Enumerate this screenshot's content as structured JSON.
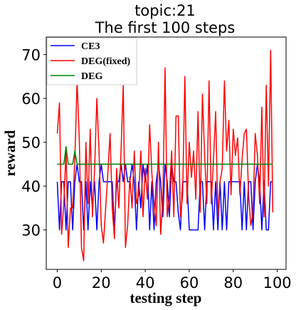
{
  "chart_data": {
    "type": "line",
    "title": "topic:21",
    "subtitle": "The first 100 steps",
    "xlabel": "testing step",
    "ylabel": "reward",
    "xlim": [
      -5,
      104
    ],
    "ylim": [
      21,
      74
    ],
    "xticks": [
      0,
      20,
      40,
      60,
      80,
      100
    ],
    "yticks": [
      30,
      40,
      50,
      60,
      70
    ],
    "grid": false,
    "legend": "top-left",
    "x": [
      0,
      1,
      2,
      3,
      4,
      5,
      6,
      7,
      8,
      9,
      10,
      11,
      12,
      13,
      14,
      15,
      16,
      17,
      18,
      19,
      20,
      21,
      22,
      23,
      24,
      25,
      26,
      27,
      28,
      29,
      30,
      31,
      32,
      33,
      34,
      35,
      36,
      37,
      38,
      39,
      40,
      41,
      42,
      43,
      44,
      45,
      46,
      47,
      48,
      49,
      50,
      51,
      52,
      53,
      54,
      55,
      56,
      57,
      58,
      59,
      60,
      61,
      62,
      63,
      64,
      65,
      66,
      67,
      68,
      69,
      70,
      71,
      72,
      73,
      74,
      75,
      76,
      77,
      78,
      79,
      80,
      81,
      82,
      83,
      84,
      85,
      86,
      87,
      88,
      89,
      90,
      91,
      92,
      93,
      94,
      95,
      96,
      97,
      98
    ],
    "series": [
      {
        "name": "CE3",
        "color": "#0000ff",
        "values": [
          41,
          30,
          41,
          41,
          30,
          41,
          41,
          30,
          41,
          45,
          41,
          41,
          30,
          41,
          30,
          41,
          35,
          41,
          30,
          41,
          45,
          41,
          41,
          41,
          41,
          41,
          30,
          41,
          41,
          45,
          41,
          45,
          41,
          41,
          45,
          41,
          30,
          41,
          35,
          45,
          41,
          45,
          30,
          41,
          30,
          41,
          45,
          41,
          33,
          45,
          41,
          33,
          45,
          41,
          41,
          34,
          30,
          41,
          41,
          41,
          30,
          30,
          30,
          30,
          30,
          41,
          41,
          30,
          41,
          41,
          41,
          30,
          41,
          30,
          41,
          30,
          41,
          30,
          41,
          41,
          41,
          41,
          41,
          41,
          30,
          41,
          30,
          41,
          41,
          30,
          41,
          45,
          41,
          30,
          41,
          30,
          30,
          41,
          41
        ]
      },
      {
        "name": "DEG(fixed)",
        "color": "#ff0000",
        "values": [
          52,
          59,
          29,
          36,
          48,
          26,
          35,
          35,
          46,
          64,
          51,
          26,
          23,
          50,
          36,
          53,
          33,
          44,
          60,
          48,
          31,
          27,
          35,
          43,
          52,
          35,
          28,
          44,
          35,
          48,
          63,
          26,
          31,
          42,
          35,
          48,
          36,
          38,
          48,
          33,
          44,
          37,
          54,
          43,
          36,
          31,
          50,
          29,
          37,
          67,
          33,
          38,
          48,
          33,
          56,
          56,
          33,
          38,
          65,
          36,
          50,
          42,
          48,
          37,
          57,
          34,
          61,
          47,
          36,
          64,
          36,
          46,
          57,
          33,
          41,
          44,
          64,
          48,
          55,
          38,
          53,
          47,
          51,
          38,
          46,
          52,
          53,
          38,
          31,
          34,
          52,
          47,
          36,
          58,
          33,
          63,
          40,
          71,
          34
        ]
      },
      {
        "name": "DEG",
        "color": "#008000",
        "values": [
          45,
          45,
          45,
          45,
          49,
          45,
          45,
          45,
          48,
          45,
          45,
          45,
          45,
          45,
          45,
          45,
          45,
          45,
          45,
          45,
          45,
          45,
          45,
          45,
          45,
          45,
          45,
          45,
          45,
          45,
          45,
          45,
          45,
          45,
          45,
          45,
          45,
          45,
          45,
          45,
          45,
          45,
          45,
          45,
          45,
          45,
          45,
          45,
          45,
          45,
          45,
          45,
          45,
          45,
          45,
          45,
          45,
          45,
          45,
          45,
          45,
          45,
          45,
          45,
          45,
          45,
          45,
          45,
          45,
          45,
          45,
          45,
          45,
          45,
          45,
          45,
          45,
          45,
          45,
          45,
          45,
          45,
          45,
          45,
          45,
          45,
          45,
          45,
          45,
          45,
          45,
          45,
          45,
          45,
          45,
          45,
          45,
          45,
          45
        ]
      }
    ]
  }
}
